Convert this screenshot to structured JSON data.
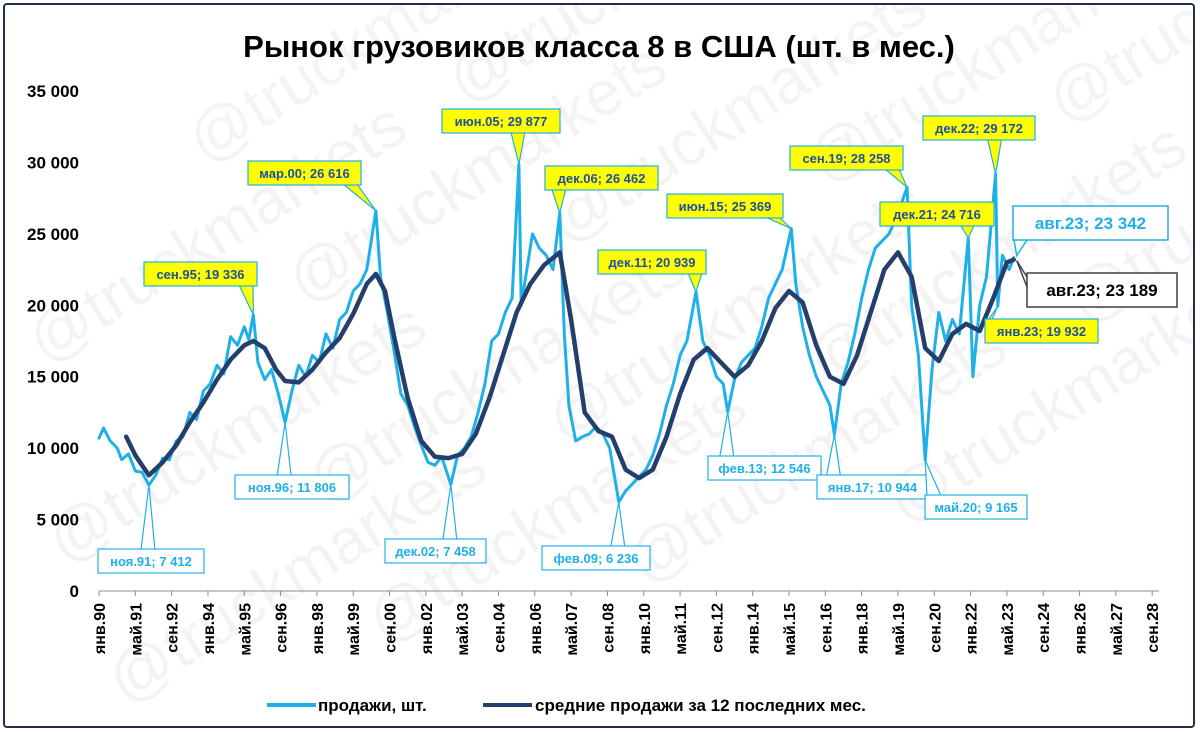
{
  "chart_data": {
    "type": "line",
    "title": "Рынок грузовиков класса 8 в США (шт. в мес.)",
    "y_axis": {
      "min": 0,
      "max": 35000,
      "step": 5000,
      "tick_labels": [
        "0",
        "5 000",
        "10 000",
        "15 000",
        "20 000",
        "25 000",
        "30 000",
        "35 000"
      ]
    },
    "x_axis": {
      "start": "янв.90",
      "end": "дек.28",
      "tick_labels": [
        "янв.90",
        "май.91",
        "сен.92",
        "янв.94",
        "май.95",
        "сен.96",
        "янв.98",
        "май.99",
        "сен.00",
        "янв.02",
        "май.03",
        "сен.04",
        "янв.06",
        "май.07",
        "сен.08",
        "янв.10",
        "май.11",
        "сен.12",
        "янв.14",
        "май.15",
        "сен.16",
        "янв.18",
        "май.19",
        "сен.20",
        "янв.22",
        "май.23",
        "сен.24",
        "янв.26",
        "май.27",
        "сен.28"
      ]
    },
    "grid": false,
    "legend": {
      "position": "bottom",
      "entries": [
        {
          "label": "продажи, шт.",
          "color": "#1fb0e8"
        },
        {
          "label": "средние продажи за 12 последних мес.",
          "color": "#243f6b"
        }
      ]
    },
    "series": [
      {
        "name": "продажи, шт.",
        "color": "#1fb0e8",
        "points": [
          [
            "янв.90",
            10700
          ],
          [
            "мар.90",
            11400
          ],
          [
            "июн.90",
            10500
          ],
          [
            "сен.90",
            10000
          ],
          [
            "ноя.90",
            9200
          ],
          [
            "фев.91",
            9600
          ],
          [
            "май.91",
            8400
          ],
          [
            "авг.91",
            8300
          ],
          [
            "ноя.91",
            7412
          ],
          [
            "фев.92",
            8100
          ],
          [
            "май.92",
            9300
          ],
          [
            "авг.92",
            9200
          ],
          [
            "ноя.92",
            10500
          ],
          [
            "фев.93",
            10800
          ],
          [
            "май.93",
            12500
          ],
          [
            "авг.93",
            12000
          ],
          [
            "ноя.93",
            14000
          ],
          [
            "фев.94",
            14500
          ],
          [
            "май.94",
            15800
          ],
          [
            "авг.94",
            15200
          ],
          [
            "ноя.94",
            17800
          ],
          [
            "фев.95",
            17200
          ],
          [
            "май.95",
            18500
          ],
          [
            "июл.95",
            17600
          ],
          [
            "сен.95",
            19336
          ],
          [
            "ноя.95",
            16000
          ],
          [
            "фев.96",
            14800
          ],
          [
            "май.96",
            15500
          ],
          [
            "авг.96",
            13800
          ],
          [
            "ноя.96",
            11806
          ],
          [
            "фев.97",
            14000
          ],
          [
            "май.97",
            15800
          ],
          [
            "авг.97",
            15000
          ],
          [
            "ноя.97",
            16500
          ],
          [
            "фев.98",
            16000
          ],
          [
            "май.98",
            18000
          ],
          [
            "авг.98",
            17000
          ],
          [
            "ноя.98",
            19000
          ],
          [
            "фев.99",
            19500
          ],
          [
            "май.99",
            21000
          ],
          [
            "авг.99",
            21500
          ],
          [
            "ноя.99",
            22500
          ],
          [
            "мар.00",
            26616
          ],
          [
            "май.00",
            22000
          ],
          [
            "авг.00",
            19500
          ],
          [
            "ноя.00",
            16800
          ],
          [
            "фев.01",
            13800
          ],
          [
            "май.01",
            13000
          ],
          [
            "авг.01",
            11500
          ],
          [
            "ноя.01",
            10200
          ],
          [
            "фев.02",
            9000
          ],
          [
            "май.02",
            8800
          ],
          [
            "авг.02",
            9400
          ],
          [
            "дек.02",
            7458
          ],
          [
            "мар.03",
            9500
          ],
          [
            "июн.03",
            10000
          ],
          [
            "сен.03",
            10800
          ],
          [
            "дек.03",
            12500
          ],
          [
            "мар.04",
            14500
          ],
          [
            "июн.04",
            17500
          ],
          [
            "сен.04",
            18000
          ],
          [
            "дек.04",
            19500
          ],
          [
            "мар.05",
            20500
          ],
          [
            "июн.05",
            29877
          ],
          [
            "июл.05",
            20000
          ],
          [
            "сен.05",
            22000
          ],
          [
            "дек.05",
            25000
          ],
          [
            "мар.06",
            24000
          ],
          [
            "июн.06",
            23500
          ],
          [
            "сен.06",
            22500
          ],
          [
            "дек.06",
            26462
          ],
          [
            "фев.07",
            18000
          ],
          [
            "апр.07",
            13000
          ],
          [
            "июл.07",
            10500
          ],
          [
            "окт.07",
            10800
          ],
          [
            "янв.08",
            11000
          ],
          [
            "апр.08",
            11500
          ],
          [
            "июл.08",
            11000
          ],
          [
            "окт.08",
            10000
          ],
          [
            "фев.09",
            6236
          ],
          [
            "май.09",
            7000
          ],
          [
            "авг.09",
            7500
          ],
          [
            "ноя.09",
            8000
          ],
          [
            "фев.10",
            8500
          ],
          [
            "май.10",
            9500
          ],
          [
            "авг.10",
            11000
          ],
          [
            "ноя.10",
            13000
          ],
          [
            "фев.11",
            14500
          ],
          [
            "май.11",
            16500
          ],
          [
            "авг.11",
            17500
          ],
          [
            "дек.11",
            20939
          ],
          [
            "мар.12",
            17500
          ],
          [
            "июн.12",
            16500
          ],
          [
            "сен.12",
            15000
          ],
          [
            "дек.12",
            14500
          ],
          [
            "фев.13",
            12546
          ],
          [
            "май.13",
            14800
          ],
          [
            "авг.13",
            16000
          ],
          [
            "ноя.13",
            16500
          ],
          [
            "фев.14",
            17000
          ],
          [
            "май.14",
            18500
          ],
          [
            "авг.14",
            20500
          ],
          [
            "ноя.14",
            21500
          ],
          [
            "фев.15",
            22500
          ],
          [
            "июн.15",
            25369
          ],
          [
            "авг.15",
            21500
          ],
          [
            "ноя.15",
            18500
          ],
          [
            "фев.16",
            16500
          ],
          [
            "май.16",
            15000
          ],
          [
            "авг.16",
            14000
          ],
          [
            "ноя.16",
            13000
          ],
          [
            "янв.17",
            10944
          ],
          [
            "апр.17",
            14500
          ],
          [
            "июл.17",
            16000
          ],
          [
            "окт.17",
            18000
          ],
          [
            "янв.18",
            20500
          ],
          [
            "апр.18",
            22500
          ],
          [
            "июл.18",
            24000
          ],
          [
            "окт.18",
            24500
          ],
          [
            "янв.19",
            25000
          ],
          [
            "апр.19",
            26000
          ],
          [
            "сен.19",
            28258
          ],
          [
            "ноя.19",
            20000
          ],
          [
            "фев.20",
            16500
          ],
          [
            "май.20",
            9165
          ],
          [
            "авг.20",
            15500
          ],
          [
            "ноя.20",
            19500
          ],
          [
            "фев.21",
            17500
          ],
          [
            "май.21",
            19000
          ],
          [
            "авг.21",
            18000
          ],
          [
            "дек.21",
            24716
          ],
          [
            "фев.22",
            15000
          ],
          [
            "май.22",
            20000
          ],
          [
            "авг.22",
            22000
          ],
          [
            "дек.22",
            29172
          ],
          [
            "янв.23",
            19932
          ],
          [
            "мар.23",
            23500
          ],
          [
            "июн.23",
            22500
          ],
          [
            "авг.23",
            23342
          ]
        ]
      },
      {
        "name": "средние продажи за 12 последних мес.",
        "color": "#243f6b",
        "points": [
          [
            "янв.91",
            10800
          ],
          [
            "май.91",
            9500
          ],
          [
            "ноя.91",
            8100
          ],
          [
            "май.92",
            9000
          ],
          [
            "ноя.92",
            10200
          ],
          [
            "май.93",
            11800
          ],
          [
            "ноя.93",
            13200
          ],
          [
            "май.94",
            14800
          ],
          [
            "ноя.94",
            16200
          ],
          [
            "май.95",
            17200
          ],
          [
            "сен.95",
            17500
          ],
          [
            "фев.96",
            17000
          ],
          [
            "июл.96",
            15500
          ],
          [
            "ноя.96",
            14700
          ],
          [
            "май.97",
            14600
          ],
          [
            "ноя.97",
            15500
          ],
          [
            "май.98",
            16700
          ],
          [
            "ноя.98",
            17700
          ],
          [
            "май.99",
            19400
          ],
          [
            "ноя.99",
            21500
          ],
          [
            "мар.00",
            22200
          ],
          [
            "июл.00",
            21000
          ],
          [
            "ноя.00",
            17800
          ],
          [
            "май.01",
            13500
          ],
          [
            "ноя.01",
            10500
          ],
          [
            "май.02",
            9400
          ],
          [
            "ноя.02",
            9300
          ],
          [
            "май.03",
            9600
          ],
          [
            "ноя.03",
            11000
          ],
          [
            "май.04",
            13500
          ],
          [
            "ноя.04",
            16500
          ],
          [
            "май.05",
            19500
          ],
          [
            "ноя.05",
            21500
          ],
          [
            "май.06",
            22800
          ],
          [
            "дек.06",
            23700
          ],
          [
            "май.07",
            19000
          ],
          [
            "ноя.07",
            12500
          ],
          [
            "май.08",
            11200
          ],
          [
            "ноя.08",
            10800
          ],
          [
            "май.09",
            8500
          ],
          [
            "ноя.09",
            7900
          ],
          [
            "май.10",
            8500
          ],
          [
            "ноя.10",
            10800
          ],
          [
            "май.11",
            13800
          ],
          [
            "ноя.11",
            16200
          ],
          [
            "май.12",
            17000
          ],
          [
            "ноя.12",
            16000
          ],
          [
            "май.13",
            15000
          ],
          [
            "ноя.13",
            15800
          ],
          [
            "май.14",
            17500
          ],
          [
            "ноя.14",
            19800
          ],
          [
            "май.15",
            21000
          ],
          [
            "ноя.15",
            20200
          ],
          [
            "май.16",
            17200
          ],
          [
            "ноя.16",
            15000
          ],
          [
            "май.17",
            14500
          ],
          [
            "ноя.17",
            16500
          ],
          [
            "май.18",
            19500
          ],
          [
            "ноя.18",
            22500
          ],
          [
            "май.19",
            23700
          ],
          [
            "ноя.19",
            22000
          ],
          [
            "май.20",
            17000
          ],
          [
            "ноя.20",
            16100
          ],
          [
            "май.21",
            18000
          ],
          [
            "ноя.21",
            18700
          ],
          [
            "май.22",
            18200
          ],
          [
            "ноя.22",
            20500
          ],
          [
            "май.23",
            23000
          ],
          [
            "авг.23",
            23189
          ]
        ]
      }
    ],
    "annotations": [
      {
        "text": "ноя.91; 7 412",
        "date": "ноя.91",
        "value": 7412,
        "style": "blue"
      },
      {
        "text": "сен.95; 19 336",
        "date": "сен.95",
        "value": 19336,
        "style": "yellow"
      },
      {
        "text": "ноя.96; 11 806",
        "date": "ноя.96",
        "value": 11806,
        "style": "blue"
      },
      {
        "text": "мар.00; 26 616",
        "date": "мар.00",
        "value": 26616,
        "style": "yellow"
      },
      {
        "text": "дек.02; 7 458",
        "date": "дек.02",
        "value": 7458,
        "style": "blue"
      },
      {
        "text": "июн.05; 29 877",
        "date": "июн.05",
        "value": 29877,
        "style": "yellow"
      },
      {
        "text": "дек.06; 26 462",
        "date": "дек.06",
        "value": 26462,
        "style": "yellow"
      },
      {
        "text": "фев.09; 6 236",
        "date": "фев.09",
        "value": 6236,
        "style": "blue"
      },
      {
        "text": "дек.11; 20 939",
        "date": "дек.11",
        "value": 20939,
        "style": "yellow"
      },
      {
        "text": "фев.13; 12 546",
        "date": "фев.13",
        "value": 12546,
        "style": "blue"
      },
      {
        "text": "июн.15; 25 369",
        "date": "июн.15",
        "value": 25369,
        "style": "yellow"
      },
      {
        "text": "янв.17; 10 944",
        "date": "янв.17",
        "value": 10944,
        "style": "blue"
      },
      {
        "text": "сен.19; 28 258",
        "date": "сен.19",
        "value": 28258,
        "style": "yellow"
      },
      {
        "text": "май.20; 9 165",
        "date": "май.20",
        "value": 9165,
        "style": "blue"
      },
      {
        "text": "дек.21; 24 716",
        "date": "дек.21",
        "value": 24716,
        "style": "yellow"
      },
      {
        "text": "дек.22; 29 172",
        "date": "дек.22",
        "value": 29172,
        "style": "yellow"
      },
      {
        "text": "янв.23; 19 932",
        "date": "янв.23",
        "value": 19932,
        "style": "yellow"
      },
      {
        "text": "авг.23; 23 342",
        "date": "авг.23",
        "value": 23342,
        "style": "big-blue"
      },
      {
        "text": "авг.23; 23 189",
        "date": "авг.23",
        "value": 23189,
        "style": "big-dark"
      }
    ]
  },
  "watermark": "@truckmarkets",
  "colors": {
    "sales": "#1fb0e8",
    "average": "#243f6b",
    "callout_yellow": "#ffff00",
    "callout_border": "#1fb0e8",
    "frame": "#1f2f4a"
  }
}
